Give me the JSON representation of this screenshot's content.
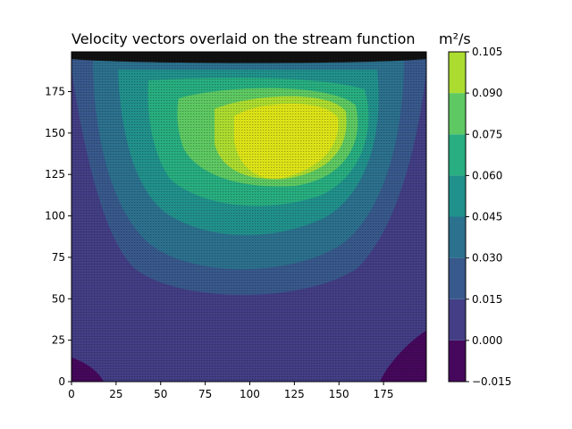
{
  "chart_data": {
    "type": "heatmap",
    "subtype": "filled-contour-with-vector-overlay",
    "title": "Velocity vectors overlaid on the stream function",
    "colorbar_label": "m²/s",
    "xlabel": "",
    "ylabel": "",
    "x_ticks": [
      0,
      25,
      50,
      75,
      100,
      125,
      150,
      175
    ],
    "y_ticks": [
      0,
      25,
      50,
      75,
      100,
      125,
      150,
      175
    ],
    "xlim": [
      0,
      199
    ],
    "ylim": [
      0,
      199
    ],
    "levels": [
      -0.015,
      0.0,
      0.015,
      0.03,
      0.045,
      0.06,
      0.075,
      0.09,
      0.105
    ],
    "level_colors": [
      "#46085c",
      "#433e85",
      "#38598c",
      "#2c718e",
      "#21918c",
      "#28ae80",
      "#5ec962",
      "#addc30",
      "#dde318"
    ],
    "colorbar_ticks": [
      "0.105",
      "0.090",
      "0.075",
      "0.060",
      "0.045",
      "0.030",
      "0.015",
      "0.000",
      "−0.015"
    ],
    "stream_function_peak": {
      "x": 115,
      "y": 145,
      "value": 0.1
    },
    "vector_overlay": true,
    "vector_color": "#000000"
  }
}
